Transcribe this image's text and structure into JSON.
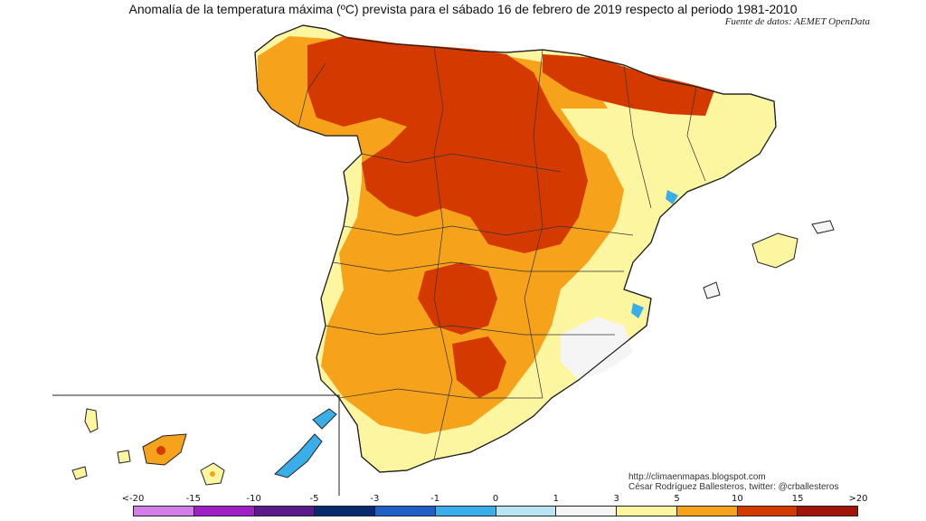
{
  "title": "Anomalía de la temperatura máxima (ºC) prevista para el sábado 16 de febrero de 2019 respecto al periodo 1981-2010",
  "source": "Fuente de datos: AEMET OpenData",
  "credits": {
    "url": "http://climaenmapas.blogspot.com",
    "author": "César Rodríguez Ballesteros, twitter: @crballesteros"
  },
  "legend": {
    "ticks": [
      "<-20",
      "-15",
      "-10",
      "-5",
      "-3",
      "-1",
      "0",
      "1",
      "3",
      "5",
      "10",
      "15",
      ">20"
    ],
    "colors": [
      "#d37ee8",
      "#a020c8",
      "#5a1a8c",
      "#0a2a6e",
      "#1e5fc8",
      "#3aaee8",
      "#b8e4f4",
      "#f5f5f5",
      "#fdf6a0",
      "#f7a21b",
      "#d43a00",
      "#a0140a",
      "#6a3a0a"
    ]
  },
  "map_colors": {
    "warm1": "#fdf6a0",
    "warm3": "#f7a21b",
    "warm5": "#d43a00",
    "neutral": "#f5f5f5",
    "cool": "#3aaee8"
  }
}
